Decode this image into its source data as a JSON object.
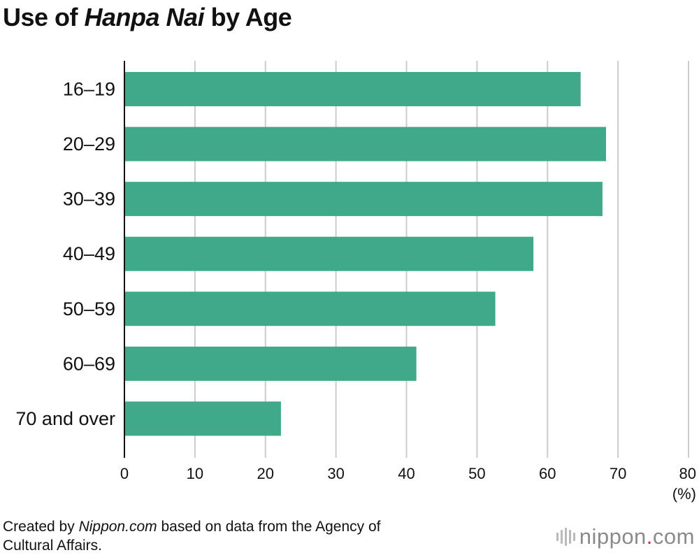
{
  "title": {
    "pre": "Use of ",
    "em": "Hanpa Nai",
    "post": " by Age"
  },
  "source": {
    "pre": "Created by ",
    "em": "Nippon.com",
    "post": " based on data from the Agency of",
    "line2": "Cultural Affairs."
  },
  "brand": {
    "name": "nippon",
    "dot": ".",
    "suffix": "com",
    "accent": "#d7263d"
  },
  "chart_data": {
    "type": "bar",
    "orientation": "horizontal",
    "categories": [
      "16–19",
      "20–29",
      "30–39",
      "40–49",
      "50–59",
      "60–69",
      "70 and over"
    ],
    "values": [
      64.7,
      68.3,
      67.8,
      58.0,
      52.6,
      41.4,
      22.2
    ],
    "xlim": [
      0,
      80
    ],
    "xticks": [
      "0",
      "10",
      "20",
      "30",
      "40",
      "50",
      "60",
      "70",
      "80"
    ],
    "unit": "(%)",
    "bar_color": "#40a98a",
    "grid": true
  }
}
